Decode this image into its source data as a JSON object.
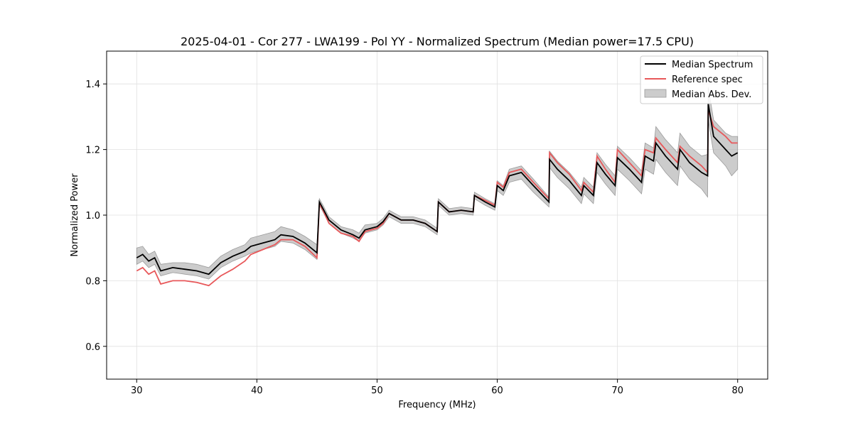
{
  "chart_data": {
    "type": "line",
    "title": "2025-04-01 - Cor 277 - LWA199 - Pol YY - Normalized Spectrum (Median power=17.5 CPU)",
    "xlabel": "Frequency (MHz)",
    "ylabel": "Normalized Power",
    "xlim": [
      27.5,
      82.5
    ],
    "ylim": [
      0.5,
      1.5
    ],
    "xticks": [
      30,
      40,
      50,
      60,
      70,
      80
    ],
    "yticks": [
      0.6,
      0.8,
      1.0,
      1.2,
      1.4
    ],
    "grid": true,
    "legend_position": "top-right",
    "legend": [
      "Median Spectrum",
      "Reference spec",
      "Median Abs. Dev."
    ],
    "colors": {
      "median": "#000000",
      "reference": "#e8585a",
      "band": "#b0b0b0"
    },
    "series": [
      {
        "name": "Median Spectrum",
        "x": [
          30.0,
          30.5,
          31.0,
          31.5,
          32.0,
          33.0,
          34.0,
          35.0,
          36.0,
          37.0,
          38.0,
          39.0,
          39.5,
          40.5,
          41.5,
          42.0,
          43.0,
          44.0,
          45.0,
          45.2,
          45.5,
          46.0,
          47.0,
          48.0,
          48.5,
          49.0,
          50.0,
          50.5,
          51.0,
          52.0,
          53.0,
          54.0,
          55.0,
          55.1,
          56.0,
          57.0,
          58.0,
          58.1,
          59.0,
          59.8,
          60.0,
          60.5,
          61.0,
          62.0,
          63.0,
          64.3,
          64.35,
          65.0,
          66.0,
          67.0,
          67.2,
          68.0,
          68.3,
          69.0,
          69.8,
          70.0,
          71.0,
          72.0,
          72.3,
          73.0,
          73.2,
          74.0,
          75.0,
          75.2,
          76.0,
          77.0,
          77.5,
          77.55,
          78.0,
          79.0,
          79.5,
          80.0
        ],
        "y": [
          0.87,
          0.88,
          0.86,
          0.87,
          0.83,
          0.84,
          0.835,
          0.83,
          0.82,
          0.855,
          0.875,
          0.89,
          0.905,
          0.915,
          0.925,
          0.94,
          0.935,
          0.915,
          0.885,
          1.04,
          1.02,
          0.985,
          0.955,
          0.94,
          0.93,
          0.955,
          0.965,
          0.98,
          1.005,
          0.985,
          0.985,
          0.975,
          0.95,
          1.04,
          1.01,
          1.015,
          1.01,
          1.06,
          1.04,
          1.025,
          1.09,
          1.075,
          1.12,
          1.13,
          1.09,
          1.04,
          1.17,
          1.14,
          1.105,
          1.06,
          1.09,
          1.06,
          1.16,
          1.125,
          1.09,
          1.175,
          1.14,
          1.1,
          1.18,
          1.165,
          1.22,
          1.18,
          1.14,
          1.2,
          1.16,
          1.13,
          1.12,
          1.34,
          1.24,
          1.2,
          1.18,
          1.19
        ]
      },
      {
        "name": "Reference spec",
        "x": [
          30.0,
          30.5,
          31.0,
          31.5,
          32.0,
          33.0,
          34.0,
          35.0,
          36.0,
          37.0,
          38.0,
          39.0,
          39.5,
          40.5,
          41.5,
          42.0,
          43.0,
          44.0,
          45.0,
          45.2,
          45.5,
          46.0,
          47.0,
          48.0,
          48.5,
          49.0,
          50.0,
          50.5,
          51.0,
          52.0,
          53.0,
          54.0,
          55.0,
          55.1,
          56.0,
          57.0,
          58.0,
          58.1,
          59.0,
          59.8,
          60.0,
          60.5,
          61.0,
          62.0,
          63.0,
          64.3,
          64.35,
          65.0,
          66.0,
          67.0,
          67.2,
          68.0,
          68.3,
          69.0,
          69.8,
          70.0,
          71.0,
          72.0,
          72.3,
          73.0,
          73.2,
          74.0,
          75.0,
          75.2,
          76.0,
          77.0,
          77.5,
          77.55,
          78.0,
          79.0,
          79.5,
          80.0
        ],
        "y": [
          0.83,
          0.84,
          0.82,
          0.83,
          0.79,
          0.8,
          0.8,
          0.795,
          0.785,
          0.815,
          0.835,
          0.86,
          0.88,
          0.895,
          0.91,
          0.925,
          0.925,
          0.905,
          0.87,
          1.035,
          1.015,
          0.975,
          0.945,
          0.935,
          0.92,
          0.95,
          0.96,
          0.975,
          1.005,
          0.985,
          0.985,
          0.975,
          0.95,
          1.04,
          1.01,
          1.015,
          1.01,
          1.06,
          1.045,
          1.03,
          1.1,
          1.085,
          1.13,
          1.14,
          1.1,
          1.05,
          1.19,
          1.16,
          1.125,
          1.075,
          1.1,
          1.07,
          1.18,
          1.14,
          1.1,
          1.2,
          1.16,
          1.12,
          1.2,
          1.19,
          1.235,
          1.2,
          1.16,
          1.21,
          1.18,
          1.15,
          1.13,
          1.32,
          1.27,
          1.24,
          1.22,
          1.22
        ]
      },
      {
        "name": "Median Abs. Dev.",
        "x": [
          30.0,
          30.5,
          31.0,
          31.5,
          32.0,
          33.0,
          34.0,
          35.0,
          36.0,
          37.0,
          38.0,
          39.0,
          39.5,
          40.5,
          41.5,
          42.0,
          43.0,
          44.0,
          45.0,
          45.2,
          45.5,
          46.0,
          47.0,
          48.0,
          48.5,
          49.0,
          50.0,
          50.5,
          51.0,
          52.0,
          53.0,
          54.0,
          55.0,
          55.1,
          56.0,
          57.0,
          58.0,
          58.1,
          59.0,
          59.8,
          60.0,
          60.5,
          61.0,
          62.0,
          63.0,
          64.3,
          64.35,
          65.0,
          66.0,
          67.0,
          67.2,
          68.0,
          68.3,
          69.0,
          69.8,
          70.0,
          71.0,
          72.0,
          72.3,
          73.0,
          73.2,
          74.0,
          75.0,
          75.2,
          76.0,
          77.0,
          77.5,
          77.55,
          78.0,
          79.0,
          79.5,
          80.0
        ],
        "lower": [
          0.85,
          0.86,
          0.84,
          0.85,
          0.815,
          0.825,
          0.82,
          0.815,
          0.805,
          0.84,
          0.86,
          0.875,
          0.885,
          0.895,
          0.905,
          0.92,
          0.915,
          0.895,
          0.865,
          1.03,
          1.01,
          0.975,
          0.945,
          0.93,
          0.92,
          0.945,
          0.955,
          0.97,
          0.995,
          0.975,
          0.975,
          0.965,
          0.94,
          1.03,
          1.0,
          1.005,
          1.0,
          1.05,
          1.03,
          1.015,
          1.075,
          1.06,
          1.1,
          1.11,
          1.07,
          1.025,
          1.145,
          1.115,
          1.08,
          1.035,
          1.065,
          1.035,
          1.13,
          1.095,
          1.06,
          1.14,
          1.105,
          1.065,
          1.14,
          1.125,
          1.17,
          1.13,
          1.09,
          1.15,
          1.11,
          1.08,
          1.055,
          1.29,
          1.19,
          1.15,
          1.12,
          1.14
        ]
      }
    ],
    "band_upper": [
      0.9,
      0.905,
      0.88,
      0.89,
      0.85,
      0.855,
      0.855,
      0.85,
      0.84,
      0.875,
      0.895,
      0.91,
      0.93,
      0.94,
      0.95,
      0.965,
      0.955,
      0.935,
      0.91,
      1.05,
      1.03,
      0.995,
      0.965,
      0.955,
      0.945,
      0.97,
      0.975,
      0.99,
      1.015,
      0.995,
      0.995,
      0.985,
      0.96,
      1.05,
      1.02,
      1.025,
      1.02,
      1.07,
      1.05,
      1.035,
      1.105,
      1.09,
      1.14,
      1.15,
      1.11,
      1.055,
      1.195,
      1.165,
      1.13,
      1.085,
      1.115,
      1.085,
      1.19,
      1.155,
      1.12,
      1.21,
      1.175,
      1.135,
      1.22,
      1.205,
      1.27,
      1.23,
      1.19,
      1.25,
      1.21,
      1.18,
      1.185,
      1.39,
      1.29,
      1.25,
      1.24,
      1.24
    ]
  }
}
